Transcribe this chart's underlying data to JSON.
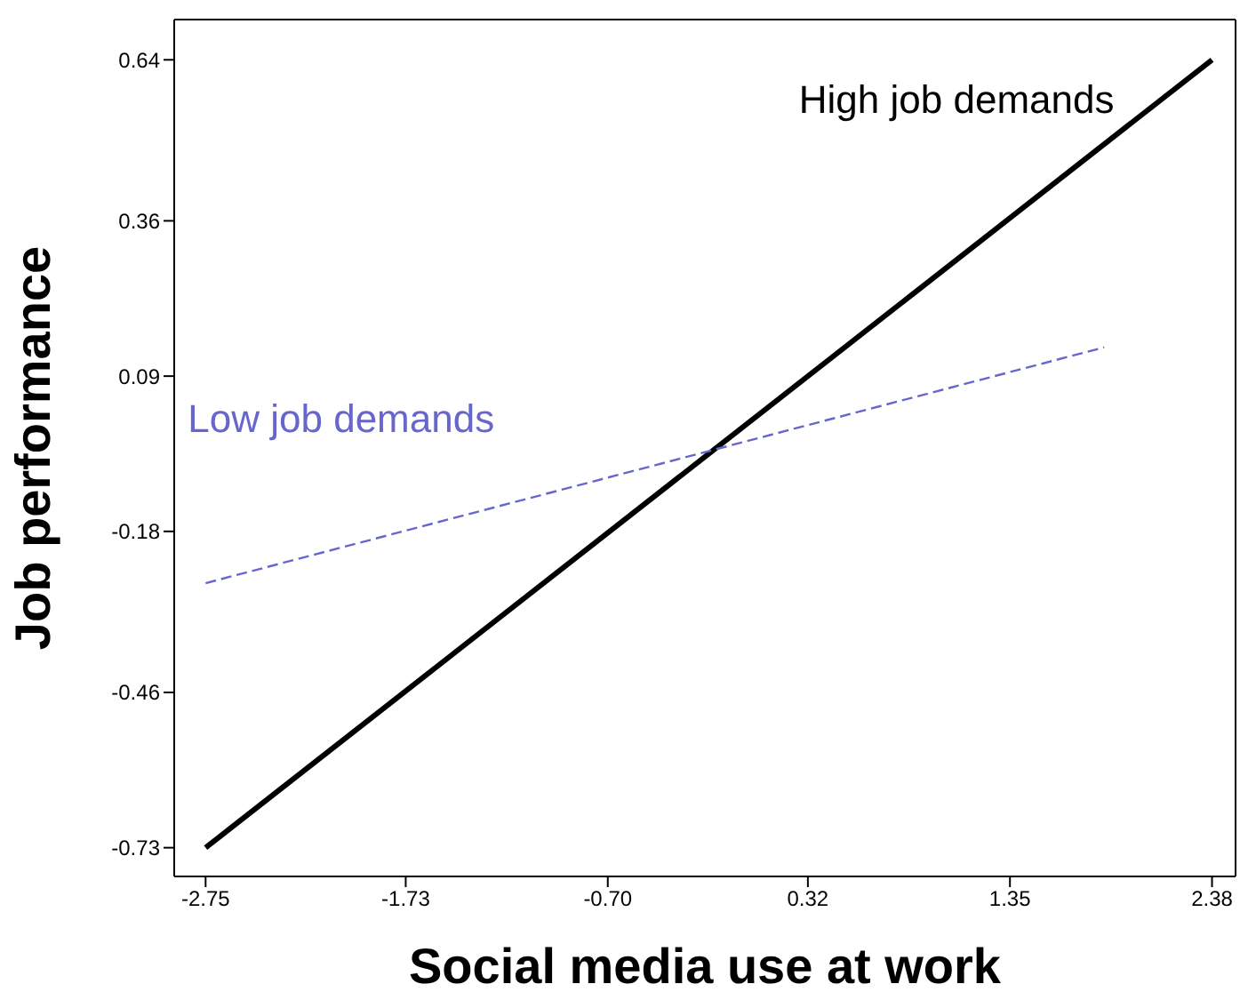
{
  "chart_data": {
    "type": "line",
    "xlabel": "Social media use at work",
    "ylabel": "Job performance",
    "series": [
      {
        "name": "High job demands",
        "color": "#000000",
        "x": [
          -2.75,
          2.38
        ],
        "values": [
          -0.73,
          0.64
        ],
        "line_style": "solid"
      },
      {
        "name": "Low job demands",
        "color": "#6666cc",
        "x": [
          -2.75,
          1.83
        ],
        "values": [
          -0.27,
          0.14
        ],
        "line_style": "dashed"
      }
    ],
    "xlim": [
      -2.91,
      2.5
    ],
    "xticks": [
      -2.75,
      -1.73,
      {
        "value": -0.7,
        "label": "-0.70"
      },
      0.32,
      1.35,
      2.38
    ],
    "ylim": [
      -0.78,
      0.71
    ],
    "yticks": [
      0.64,
      0.36,
      0.09,
      -0.18,
      -0.46,
      -0.73
    ],
    "grid": false,
    "legend": false,
    "marker": "none"
  }
}
